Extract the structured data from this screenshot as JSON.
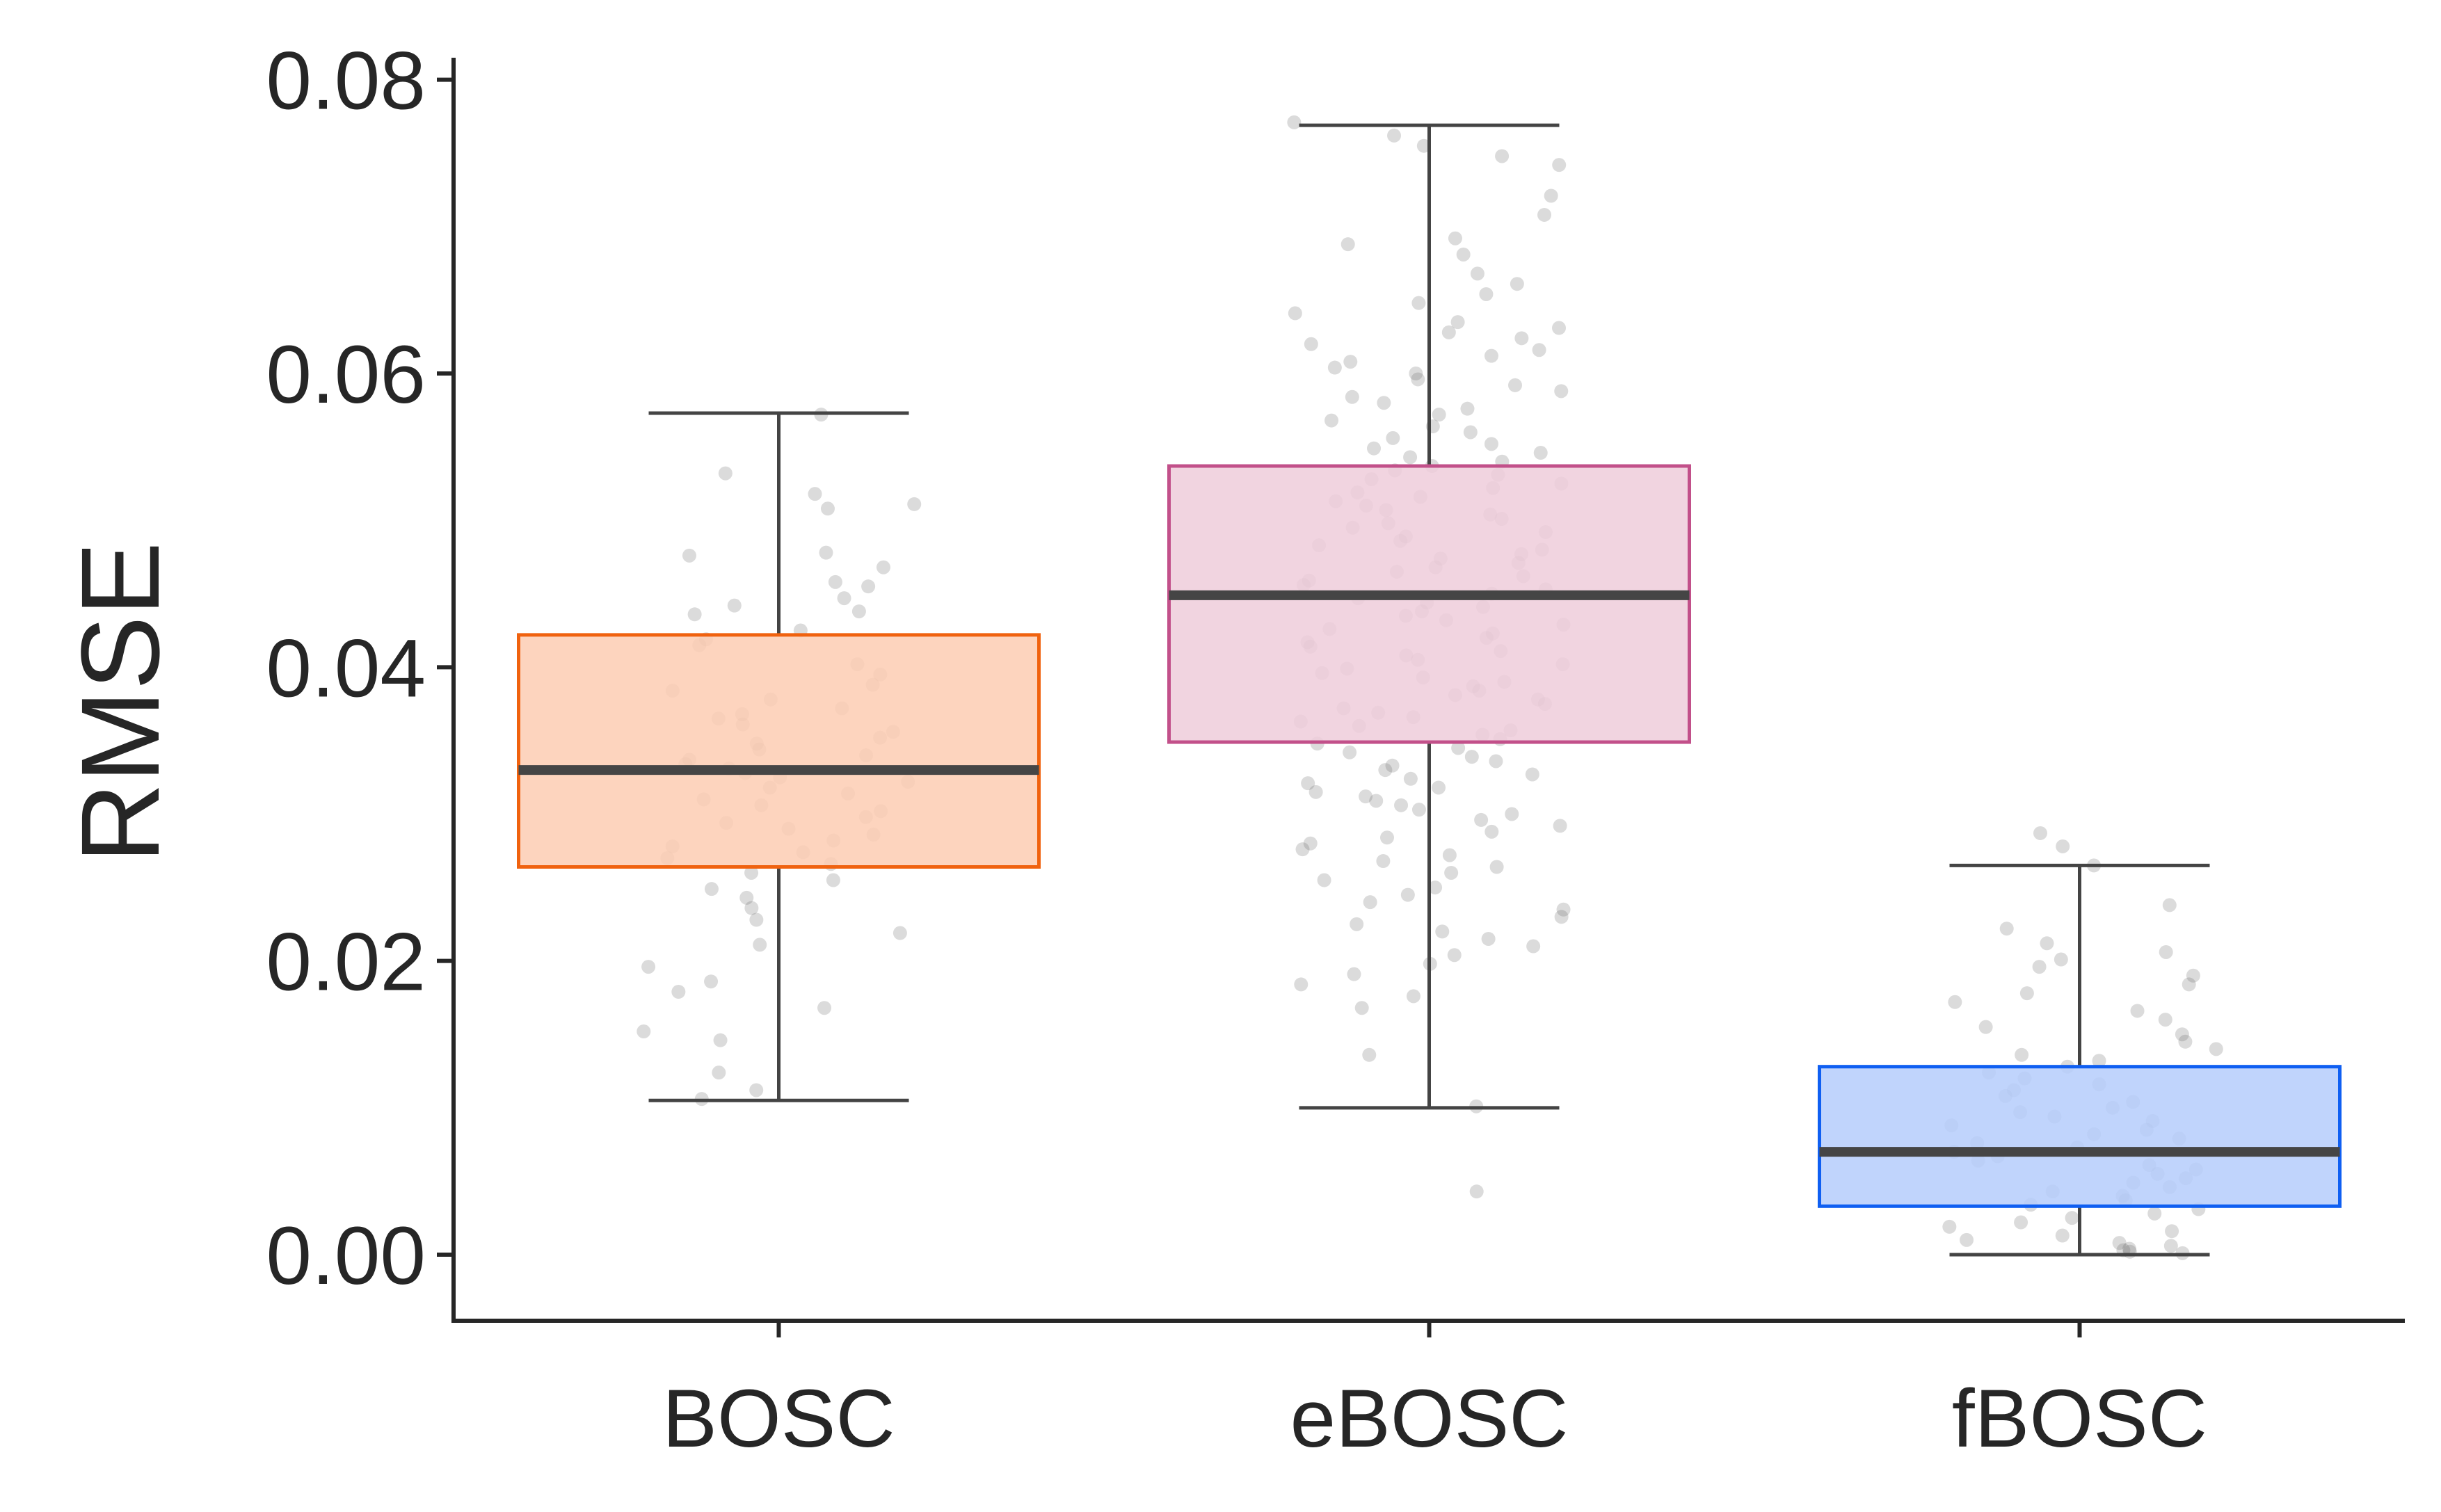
{
  "chart_data": {
    "type": "box",
    "title": "",
    "xlabel": "",
    "ylabel": "RMSE",
    "ylim": [
      -0.0045,
      0.0815
    ],
    "yticks": [
      0.0,
      0.02,
      0.04,
      0.06,
      0.08
    ],
    "ytick_labels": [
      "0.00",
      "0.02",
      "0.04",
      "0.06",
      "0.08"
    ],
    "grid": false,
    "legend": "none",
    "categories": [
      "BOSC",
      "eBOSC",
      "fBOSC"
    ],
    "boxes": [
      {
        "name": "BOSC",
        "whisker_low": 0.0105,
        "q1": 0.0264,
        "median": 0.033,
        "q3": 0.0422,
        "whisker_high": 0.0573,
        "fill": "#fdccb3",
        "edge": "#f0620f",
        "points": [
          0.0572,
          0.0532,
          0.0518,
          0.0511,
          0.0508,
          0.0478,
          0.0476,
          0.0468,
          0.0458,
          0.0455,
          0.0447,
          0.0442,
          0.0438,
          0.0436,
          0.0425,
          0.0419,
          0.0415,
          0.0402,
          0.0395,
          0.0388,
          0.0384,
          0.0378,
          0.0372,
          0.0368,
          0.0365,
          0.0361,
          0.0356,
          0.0352,
          0.0348,
          0.0344,
          0.034,
          0.0337,
          0.0334,
          0.0331,
          0.0328,
          0.0325,
          0.0322,
          0.0318,
          0.0314,
          0.031,
          0.0306,
          0.0302,
          0.0298,
          0.0294,
          0.029,
          0.0286,
          0.0282,
          0.0278,
          0.0274,
          0.027,
          0.0266,
          0.026,
          0.0255,
          0.0249,
          0.0243,
          0.0236,
          0.0228,
          0.0219,
          0.0211,
          0.0196,
          0.0186,
          0.0179,
          0.0168,
          0.0152,
          0.0146,
          0.0124,
          0.0112,
          0.0106
        ]
      },
      {
        "name": "eBOSC",
        "whisker_low": 0.01,
        "q1": 0.0349,
        "median": 0.0449,
        "q3": 0.0537,
        "whisker_high": 0.0769,
        "fill": "#eeccdb",
        "edge": "#c2508a",
        "points": [
          0.0771,
          0.0762,
          0.0755,
          0.0748,
          0.0742,
          0.0721,
          0.0708,
          0.0692,
          0.0688,
          0.0681,
          0.0668,
          0.0661,
          0.0654,
          0.0648,
          0.0641,
          0.0635,
          0.0631,
          0.0628,
          0.0624,
          0.062,
          0.0616,
          0.0612,
          0.0608,
          0.0604,
          0.06,
          0.0596,
          0.0592,
          0.0588,
          0.0584,
          0.058,
          0.0576,
          0.0572,
          0.0568,
          0.0564,
          0.056,
          0.0556,
          0.0552,
          0.0549,
          0.0546,
          0.0543,
          0.054,
          0.0537,
          0.0534,
          0.0531,
          0.0528,
          0.0525,
          0.0522,
          0.0519,
          0.0516,
          0.0513,
          0.051,
          0.0507,
          0.0504,
          0.0501,
          0.0498,
          0.0495,
          0.0492,
          0.0489,
          0.0486,
          0.0483,
          0.048,
          0.0477,
          0.0474,
          0.0471,
          0.0468,
          0.0465,
          0.0462,
          0.0459,
          0.0456,
          0.0453,
          0.045,
          0.0447,
          0.0444,
          0.0441,
          0.0438,
          0.0435,
          0.0432,
          0.0429,
          0.0426,
          0.0423,
          0.042,
          0.0417,
          0.0414,
          0.0411,
          0.0408,
          0.0405,
          0.0402,
          0.0399,
          0.0396,
          0.0393,
          0.039,
          0.0387,
          0.0384,
          0.0381,
          0.0378,
          0.0375,
          0.0372,
          0.0369,
          0.0366,
          0.0363,
          0.036,
          0.0357,
          0.0354,
          0.0351,
          0.0348,
          0.0345,
          0.0342,
          0.0339,
          0.0336,
          0.0333,
          0.033,
          0.0327,
          0.0324,
          0.0321,
          0.0318,
          0.0315,
          0.0312,
          0.0309,
          0.0306,
          0.0303,
          0.03,
          0.0296,
          0.0292,
          0.0288,
          0.0284,
          0.028,
          0.0276,
          0.0272,
          0.0268,
          0.0264,
          0.026,
          0.0255,
          0.025,
          0.0245,
          0.024,
          0.0235,
          0.023,
          0.0225,
          0.022,
          0.0215,
          0.021,
          0.0204,
          0.0198,
          0.0191,
          0.0184,
          0.0176,
          0.0168,
          0.0136,
          0.0101,
          0.0043
        ]
      },
      {
        "name": "fBOSC",
        "whisker_low": 0.0,
        "q1": 0.0033,
        "median": 0.007,
        "q3": 0.0128,
        "whisker_high": 0.0265,
        "fill": "#b5ccfc",
        "edge": "#0f5ff2",
        "points": [
          0.0287,
          0.0278,
          0.0265,
          0.0238,
          0.0222,
          0.0212,
          0.0206,
          0.0201,
          0.0196,
          0.019,
          0.0184,
          0.0178,
          0.0172,
          0.0166,
          0.016,
          0.0155,
          0.015,
          0.0145,
          0.014,
          0.0136,
          0.0132,
          0.0128,
          0.0124,
          0.012,
          0.0116,
          0.0112,
          0.0108,
          0.0104,
          0.01,
          0.0097,
          0.0094,
          0.0091,
          0.0088,
          0.0085,
          0.0082,
          0.0079,
          0.0076,
          0.0073,
          0.007,
          0.0067,
          0.0064,
          0.0061,
          0.0058,
          0.0055,
          0.0052,
          0.0049,
          0.0046,
          0.0043,
          0.004,
          0.0037,
          0.0034,
          0.0031,
          0.0028,
          0.0025,
          0.0022,
          0.0019,
          0.0016,
          0.0013,
          0.001,
          0.0008,
          0.0006,
          0.0004,
          0.0003,
          0.0002,
          0.0001
        ]
      }
    ]
  }
}
